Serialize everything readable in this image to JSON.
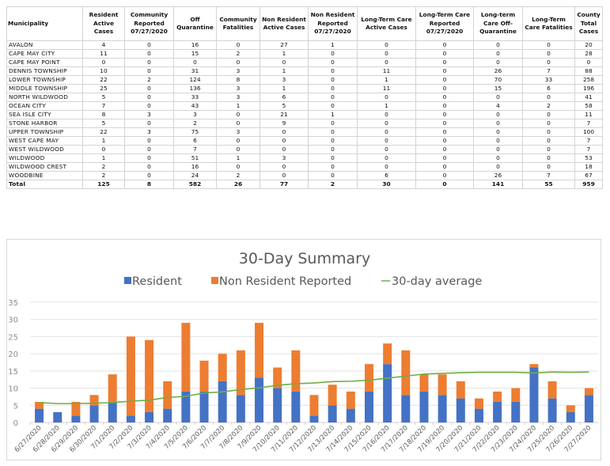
{
  "table": {
    "headers": [
      "Municipality",
      "Resident Active Cases",
      "Community Reported 07/27/2020",
      "Off Quarantine",
      "Community Fatalities",
      "Non Resident Active Cases",
      "Non Resident Reported 07/27/2020",
      "Long-Term Care Active Cases",
      "Long-Term Care Reported 07/27/2020",
      "Long-term Care Off-Quarantine",
      "Long-Term Care Fatalities",
      "County Total Cases"
    ],
    "rows": [
      [
        "AVALON",
        "4",
        "0",
        "16",
        "0",
        "27",
        "1",
        "0",
        "0",
        "0",
        "0",
        "20"
      ],
      [
        "CAPE MAY CITY",
        "11",
        "0",
        "15",
        "2",
        "1",
        "0",
        "0",
        "0",
        "0",
        "0",
        "28"
      ],
      [
        "CAPE MAY POINT",
        "0",
        "0",
        "0",
        "0",
        "0",
        "0",
        "0",
        "0",
        "0",
        "0",
        "0"
      ],
      [
        "DENNIS TOWNSHIP",
        "10",
        "0",
        "31",
        "3",
        "1",
        "0",
        "11",
        "0",
        "26",
        "7",
        "88"
      ],
      [
        "LOWER TOWNSHIP",
        "22",
        "2",
        "124",
        "8",
        "3",
        "0",
        "1",
        "0",
        "70",
        "33",
        "258"
      ],
      [
        "MIDDLE TOWNSHIP",
        "25",
        "0",
        "136",
        "3",
        "1",
        "0",
        "11",
        "0",
        "15",
        "6",
        "196"
      ],
      [
        "NORTH WILDWOOD",
        "5",
        "0",
        "33",
        "3",
        "6",
        "0",
        "0",
        "0",
        "0",
        "0",
        "41"
      ],
      [
        "OCEAN CITY",
        "7",
        "0",
        "43",
        "1",
        "5",
        "0",
        "1",
        "0",
        "4",
        "2",
        "58"
      ],
      [
        "SEA ISLE CITY",
        "8",
        "3",
        "3",
        "0",
        "21",
        "1",
        "0",
        "0",
        "0",
        "0",
        "11"
      ],
      [
        "STONE HARBOR",
        "5",
        "0",
        "2",
        "0",
        "9",
        "0",
        "0",
        "0",
        "0",
        "0",
        "7"
      ],
      [
        "UPPER TOWNSHIP",
        "22",
        "3",
        "75",
        "3",
        "0",
        "0",
        "0",
        "0",
        "0",
        "0",
        "100"
      ],
      [
        "WEST CAPE MAY",
        "1",
        "0",
        "6",
        "0",
        "0",
        "0",
        "0",
        "0",
        "0",
        "0",
        "7"
      ],
      [
        "WEST WILDWOOD",
        "0",
        "0",
        "7",
        "0",
        "0",
        "0",
        "0",
        "0",
        "0",
        "0",
        "7"
      ],
      [
        "WILDWOOD",
        "1",
        "0",
        "51",
        "1",
        "3",
        "0",
        "0",
        "0",
        "0",
        "0",
        "53"
      ],
      [
        "WILDWOOD CREST",
        "2",
        "0",
        "16",
        "0",
        "0",
        "0",
        "0",
        "0",
        "0",
        "0",
        "18"
      ],
      [
        "WOODBINE",
        "2",
        "0",
        "24",
        "2",
        "0",
        "0",
        "6",
        "0",
        "26",
        "7",
        "67"
      ]
    ],
    "total": [
      "Total",
      "125",
      "8",
      "582",
      "26",
      "77",
      "2",
      "30",
      "0",
      "141",
      "55",
      "959"
    ]
  },
  "chart_data": {
    "type": "bar",
    "stacked": true,
    "title": "30-Day Summary",
    "xlabel": "",
    "ylabel": "",
    "ylim": [
      0,
      35
    ],
    "yticks": [
      0,
      5,
      10,
      15,
      20,
      25,
      30,
      35
    ],
    "grid": true,
    "legend_position": "top",
    "categories": [
      "6/27/2020",
      "6/28/2020",
      "6/29/2020",
      "6/30/2020",
      "7/1/2020",
      "7/2/2020",
      "7/3/2020",
      "7/4/2020",
      "7/5/2020",
      "7/6/2020",
      "7/7/2020",
      "7/8/2020",
      "7/9/2020",
      "7/10/2020",
      "7/11/2020",
      "7/12/2020",
      "7/13/2020",
      "7/14/2020",
      "7/15/2020",
      "7/16/2020",
      "7/17/2020",
      "7/18/2020",
      "7/19/2020",
      "7/20/2020",
      "7/21/2020",
      "7/22/2020",
      "7/23/2020",
      "7/24/2020",
      "7/25/2020",
      "7/26/2020",
      "7/27/2020"
    ],
    "series": [
      {
        "name": "Resident",
        "kind": "bar",
        "color": "#4472C4",
        "values": [
          4,
          3,
          2,
          5,
          6,
          2,
          3,
          4,
          9,
          9,
          12,
          8,
          13,
          10,
          9,
          2,
          5,
          4,
          9,
          17,
          8,
          9,
          8,
          7,
          4,
          6,
          6,
          16,
          7,
          3,
          8
        ]
      },
      {
        "name": "Non Resident Reported",
        "kind": "bar",
        "color": "#ED7D31",
        "values": [
          2,
          0,
          4,
          3,
          8,
          23,
          21,
          8,
          20,
          9,
          8,
          13,
          16,
          6,
          12,
          6,
          6,
          5,
          8,
          6,
          13,
          5,
          6,
          5,
          3,
          3,
          4,
          1,
          5,
          2,
          2
        ]
      },
      {
        "name": "30-day average",
        "kind": "line",
        "color": "#70AD47",
        "values": [
          5.8,
          5.5,
          5.5,
          5.6,
          5.8,
          6.2,
          6.5,
          7.3,
          7.6,
          8.6,
          8.9,
          9.6,
          10.1,
          10.8,
          11.3,
          11.5,
          11.9,
          12.0,
          12.3,
          12.9,
          13.5,
          14.1,
          14.3,
          14.5,
          14.6,
          14.6,
          14.6,
          14.4,
          14.7,
          14.6,
          14.7
        ]
      }
    ]
  }
}
